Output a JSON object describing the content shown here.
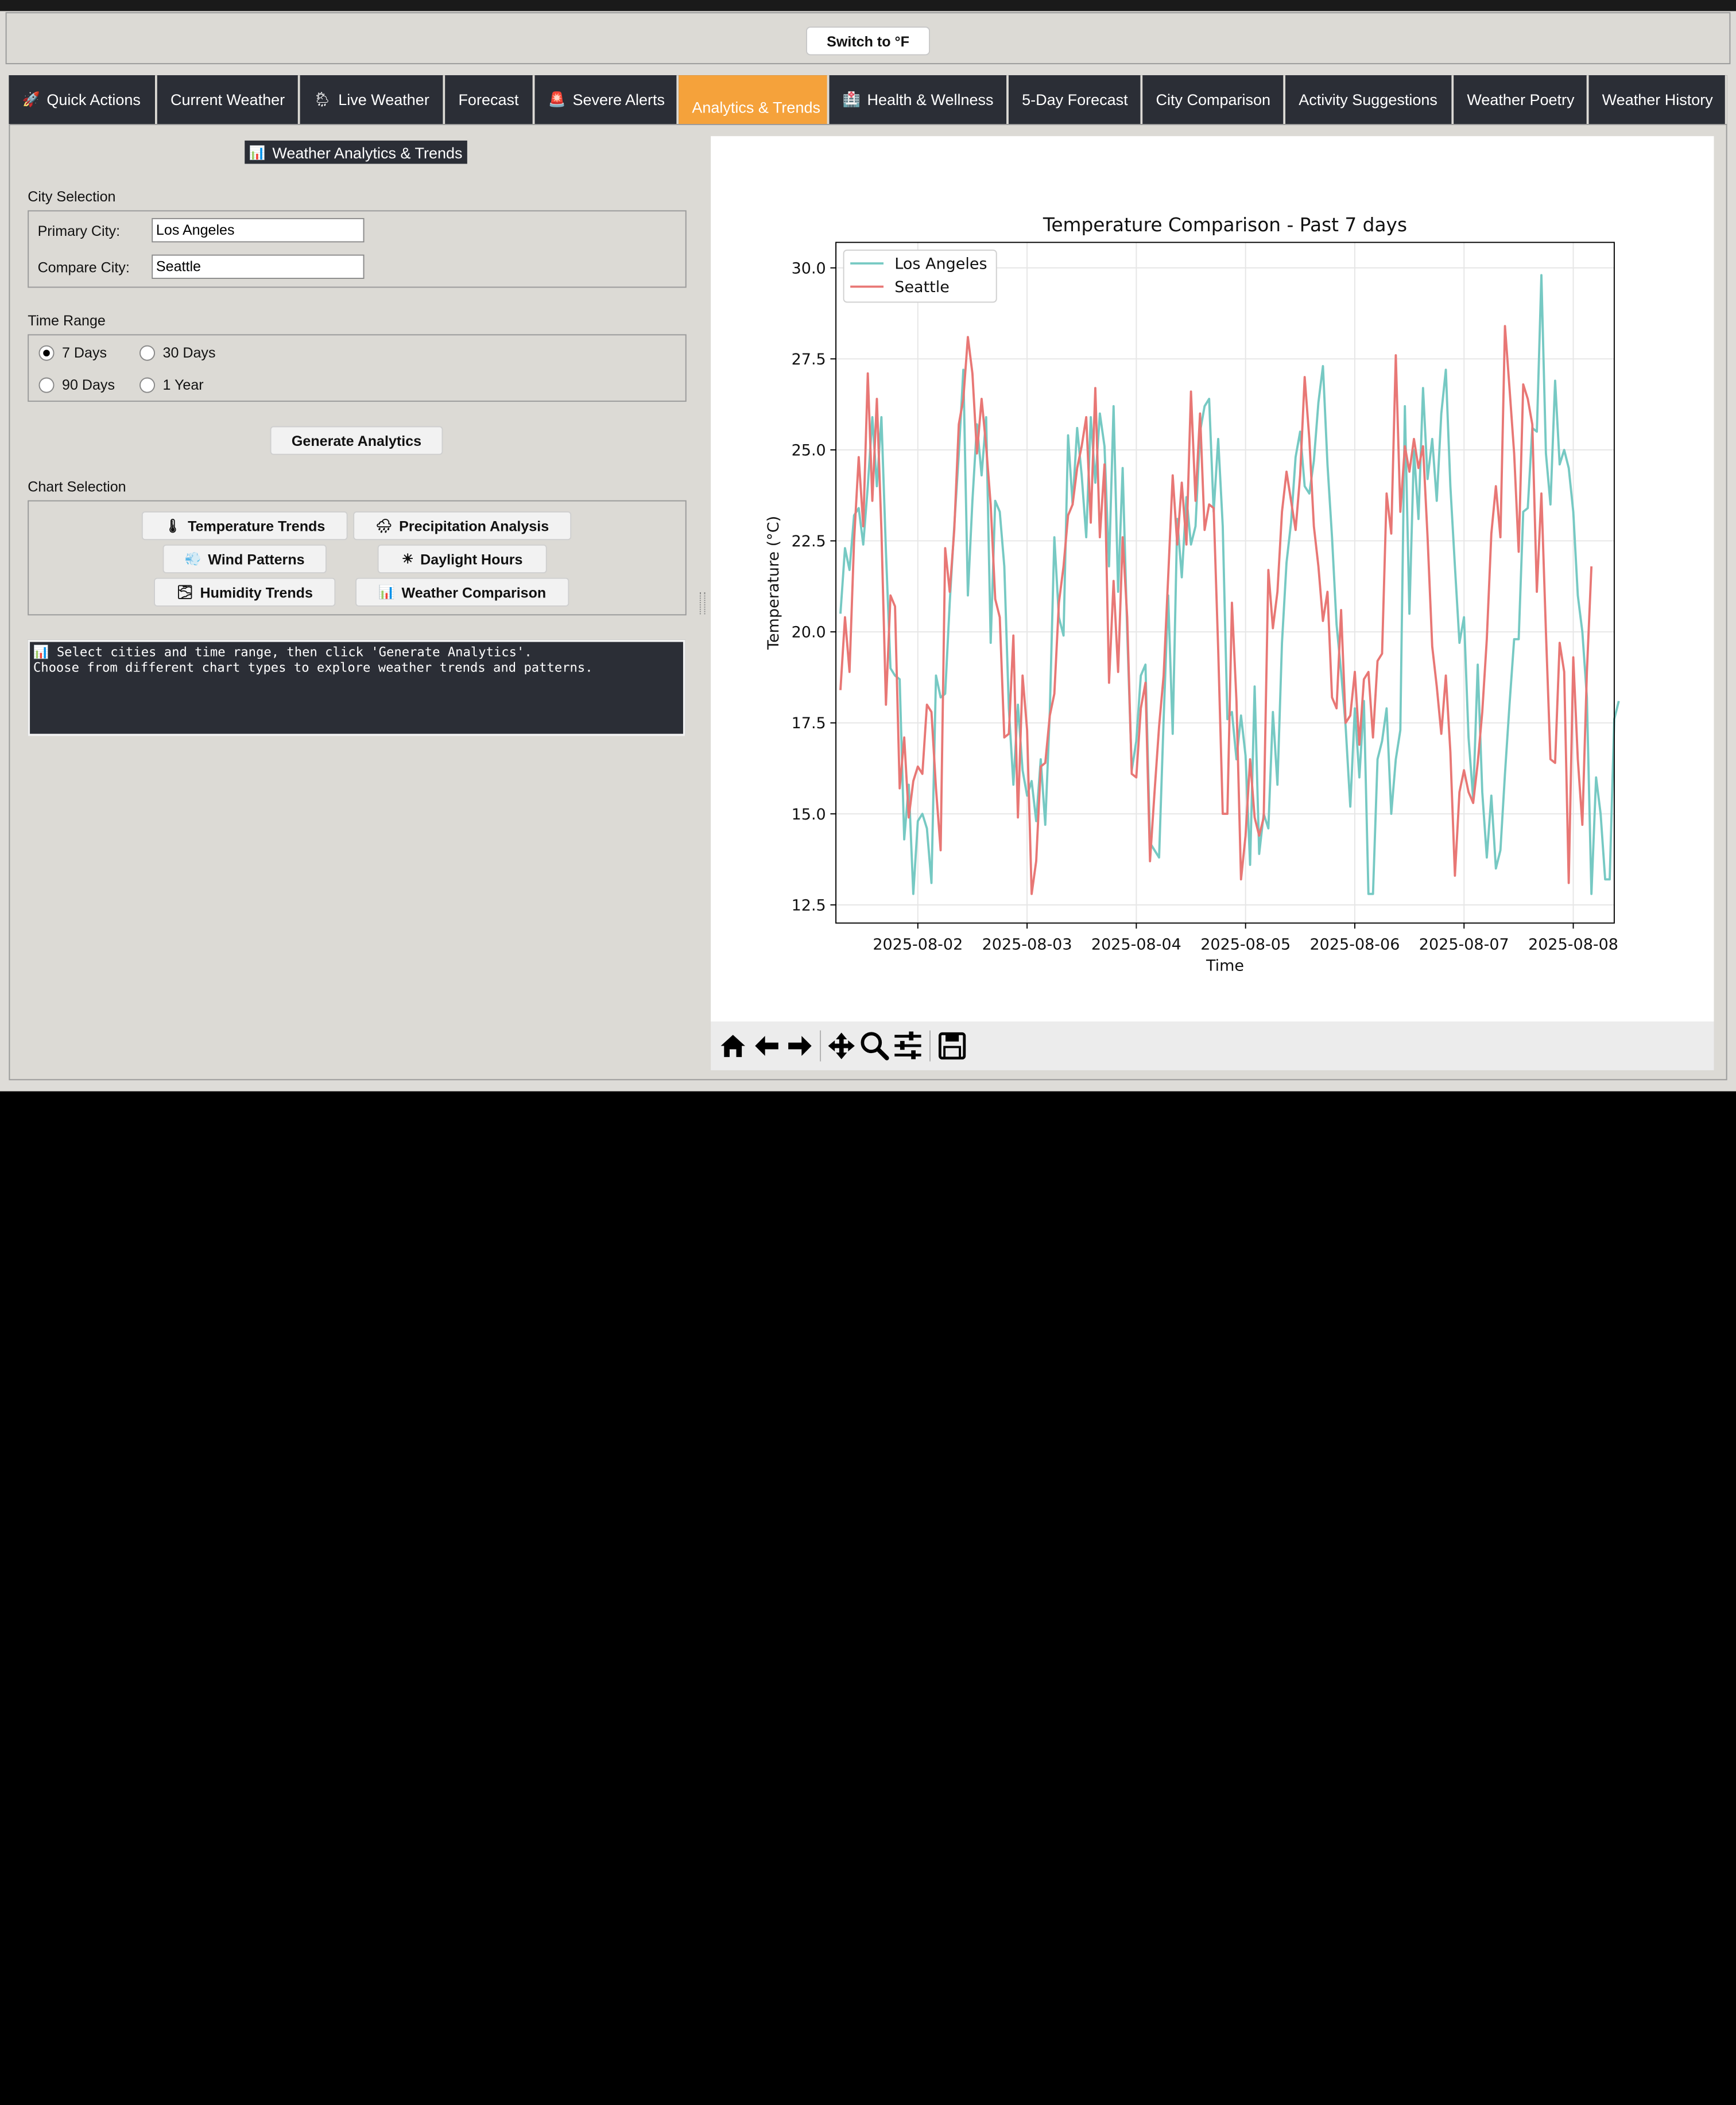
{
  "topbar": {
    "switch_label": "Switch to °F"
  },
  "tabs": [
    {
      "label": "Quick Actions",
      "icon": "🚀"
    },
    {
      "label": "Current Weather",
      "icon": ""
    },
    {
      "label": "Live Weather",
      "icon": "🌦"
    },
    {
      "label": "Forecast",
      "icon": ""
    },
    {
      "label": "Severe Alerts",
      "icon": "🚨"
    },
    {
      "label": "Analytics & Trends",
      "icon": ""
    },
    {
      "label": "Health & Wellness",
      "icon": "🏥"
    },
    {
      "label": "5-Day Forecast",
      "icon": ""
    },
    {
      "label": "City Comparison",
      "icon": ""
    },
    {
      "label": "Activity Suggestions",
      "icon": ""
    },
    {
      "label": "Weather Poetry",
      "icon": ""
    },
    {
      "label": "Weather History",
      "icon": ""
    }
  ],
  "panel": {
    "header": "Weather Analytics & Trends",
    "header_icon": "📊",
    "city_section": "City Selection",
    "primary_label": "Primary City:",
    "primary_value": "Los Angeles",
    "compare_label": "Compare City:",
    "compare_value": "Seattle",
    "time_section": "Time Range",
    "time_options": [
      "7 Days",
      "30 Days",
      "90 Days",
      "1 Year"
    ],
    "time_selected": "7 Days",
    "generate_label": "Generate Analytics",
    "chart_section": "Chart Selection",
    "chart_buttons": [
      {
        "label": "Temperature Trends",
        "icon": "🌡"
      },
      {
        "label": "Precipitation Analysis",
        "icon": "🌧"
      },
      {
        "label": "Wind Patterns",
        "icon": "💨"
      },
      {
        "label": "Daylight Hours",
        "icon": "☀"
      },
      {
        "label": "Humidity Trends",
        "icon": "🌫"
      },
      {
        "label": "Weather Comparison",
        "icon": "📊"
      }
    ],
    "console_text": "📊 Select cities and time range, then click 'Generate Analytics'.\nChoose from different chart types to explore weather trends and patterns."
  },
  "toolbar_icons": [
    "home-icon",
    "back-arrow-icon",
    "forward-arrow-icon",
    "pan-icon",
    "zoom-icon",
    "configure-subplots-icon",
    "save-icon"
  ],
  "chart_data": {
    "type": "line",
    "title": "Temperature Comparison - Past 7 days",
    "xlabel": "Time",
    "ylabel": "Temperature (°C)",
    "ylim": [
      12.0,
      30.7
    ],
    "xlim": [
      "2025-08-01 06:00",
      "2025-08-08 09:00"
    ],
    "x_ticks": [
      "2025-08-02",
      "2025-08-03",
      "2025-08-04",
      "2025-08-05",
      "2025-08-06",
      "2025-08-07",
      "2025-08-08"
    ],
    "y_ticks": [
      "12.5",
      "15.0",
      "17.5",
      "20.0",
      "22.5",
      "25.0",
      "27.5",
      "30.0"
    ],
    "grid": true,
    "legend": "top-left",
    "x_start": "2025-08-01 07:00",
    "x_step_hours": 1,
    "series": [
      {
        "name": "Los Angeles",
        "color": "#76c9c3",
        "values": [
          20.5,
          22.3,
          21.7,
          23.2,
          23.4,
          22.4,
          24.0,
          25.9,
          24.0,
          25.9,
          22.2,
          19.0,
          18.8,
          18.7,
          14.3,
          15.8,
          12.8,
          14.8,
          15.0,
          14.6,
          13.1,
          18.8,
          18.2,
          18.3,
          20.8,
          22.9,
          24.9,
          27.2,
          21.0,
          23.6,
          25.7,
          24.3,
          25.9,
          19.7,
          23.6,
          23.3,
          21.8,
          17.9,
          15.8,
          18.0,
          16.2,
          15.5,
          15.9,
          14.8,
          16.5,
          14.7,
          17.8,
          22.6,
          20.4,
          19.9,
          25.4,
          23.5,
          25.6,
          24.3,
          22.6,
          25.9,
          24.1,
          26.0,
          25.1,
          21.8,
          26.2,
          21.1,
          24.5,
          20.0,
          16.2,
          17.0,
          18.8,
          19.1,
          14.2,
          14.0,
          13.8,
          17.6,
          21.0,
          17.2,
          23.1,
          21.5,
          23.7,
          22.4,
          22.9,
          25.5,
          26.2,
          26.4,
          23.3,
          25.3,
          22.9,
          17.6,
          17.8,
          16.5,
          17.7,
          16.6,
          13.6,
          18.5,
          13.9,
          15.0,
          14.6,
          17.8,
          15.8,
          19.7,
          21.9,
          23.0,
          24.8,
          25.5,
          24.0,
          23.8,
          24.7,
          26.3,
          27.3,
          24.6,
          22.6,
          20.2,
          18.9,
          17.4,
          15.2,
          17.9,
          16.0,
          18.1,
          12.8,
          12.8,
          16.5,
          17.0,
          17.9,
          15.0,
          16.5,
          17.3,
          26.2,
          20.5,
          25.0,
          23.1,
          26.7,
          24.2,
          25.3,
          23.6,
          26.0,
          27.2,
          24.0,
          21.8,
          19.7,
          20.4,
          17.1,
          15.4,
          19.1,
          15.6,
          13.8,
          15.5,
          13.5,
          14.0,
          16.1,
          18.0,
          19.8,
          19.8,
          23.3,
          23.4,
          25.6,
          25.5,
          29.8,
          24.9,
          23.5,
          26.9,
          24.6,
          25.0,
          24.5,
          23.3,
          21.0,
          20.0,
          18.2,
          12.8,
          16.0,
          15.0,
          13.2,
          13.2,
          17.6,
          18.1
        ],
        "labels": {
          "first": "20.5"
        }
      },
      {
        "name": "Seattle",
        "color": "#e87775",
        "values": [
          18.4,
          20.4,
          18.9,
          22.5,
          24.8,
          22.9,
          27.1,
          23.6,
          26.4,
          22.8,
          18.0,
          21.0,
          20.7,
          15.7,
          17.1,
          14.9,
          15.9,
          16.3,
          16.1,
          18.0,
          17.8,
          15.7,
          14.0,
          22.3,
          21.1,
          22.8,
          25.7,
          26.4,
          28.1,
          27.1,
          24.9,
          26.4,
          25.1,
          23.5,
          20.9,
          20.4,
          17.1,
          17.2,
          19.9,
          14.9,
          18.8,
          17.3,
          12.8,
          13.7,
          16.3,
          16.4,
          17.7,
          18.3,
          20.8,
          21.8,
          23.2,
          23.5,
          24.5,
          25.1,
          25.9,
          23.0,
          26.7,
          22.6,
          24.6,
          18.6,
          21.4,
          18.9,
          22.6,
          20.4,
          16.1,
          16.0,
          17.9,
          18.6,
          13.7,
          15.6,
          17.4,
          18.8,
          21.5,
          24.3,
          22.4,
          24.1,
          22.4,
          26.6,
          23.6,
          26.0,
          22.8,
          23.5,
          23.4,
          19.5,
          15.0,
          15.0,
          20.8,
          18.1,
          13.2,
          14.4,
          16.5,
          14.9,
          14.4,
          14.9,
          21.7,
          20.1,
          21.1,
          23.3,
          24.4,
          23.6,
          22.8,
          24.3,
          27.0,
          25.3,
          22.9,
          21.8,
          20.3,
          21.1,
          18.2,
          17.9,
          20.6,
          17.5,
          17.7,
          18.9,
          16.9,
          18.7,
          18.9,
          17.1,
          19.2,
          19.4,
          23.8,
          22.7,
          27.6,
          23.3,
          25.1,
          24.4,
          25.3,
          24.5,
          25.1,
          22.6,
          19.6,
          18.5,
          17.2,
          18.8,
          16.7,
          13.3,
          15.6,
          16.2,
          15.6,
          15.3,
          16.4,
          17.8,
          19.8,
          22.7,
          24.0,
          22.6,
          28.4,
          26.7,
          24.9,
          22.2,
          26.8,
          26.4,
          25.7,
          21.1,
          23.8,
          20.0,
          16.5,
          16.4,
          19.7,
          18.9,
          13.1,
          19.3,
          16.5,
          14.7,
          18.9,
          21.8
        ]
      }
    ]
  }
}
